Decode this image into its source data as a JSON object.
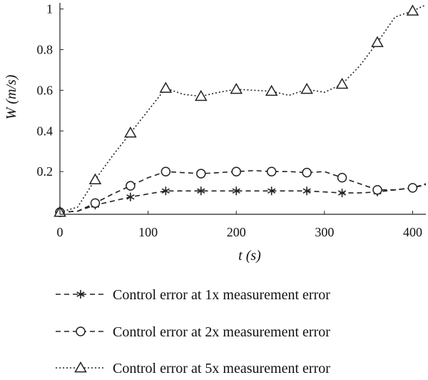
{
  "chart_data": {
    "type": "line",
    "xlabel": "t (s)",
    "ylabel": "W (m/s)",
    "xlim": [
      0,
      415
    ],
    "ylim": [
      -0.01,
      1.03
    ],
    "x_ticks": [
      "0",
      "100",
      "200",
      "300",
      "400"
    ],
    "x_tick_values": [
      0,
      100,
      200,
      300,
      400
    ],
    "y_ticks": [
      "0.2",
      "0.4",
      "0.6",
      "0.8",
      "1"
    ],
    "y_tick_values": [
      0.2,
      0.4,
      0.6,
      0.8,
      1.0
    ],
    "grid": false,
    "legend_position": "bottom",
    "series": [
      {
        "name": "Control error at 1x measurement error",
        "marker": "star",
        "dash": "dashed",
        "x": [
          0,
          20,
          40,
          60,
          80,
          100,
          120,
          140,
          160,
          180,
          200,
          220,
          240,
          260,
          280,
          300,
          320,
          340,
          360,
          380,
          400,
          415
        ],
        "y": [
          0.0,
          0.005,
          0.035,
          0.055,
          0.075,
          0.09,
          0.105,
          0.105,
          0.105,
          0.105,
          0.105,
          0.105,
          0.105,
          0.105,
          0.105,
          0.1,
          0.095,
          0.095,
          0.1,
          0.11,
          0.12,
          0.135
        ]
      },
      {
        "name": "Control error at 2x measurement error",
        "marker": "circle",
        "dash": "dashed",
        "x": [
          0,
          20,
          40,
          60,
          80,
          100,
          120,
          140,
          160,
          180,
          200,
          220,
          240,
          260,
          280,
          300,
          320,
          340,
          360,
          380,
          400,
          415
        ],
        "y": [
          0.0,
          0.005,
          0.045,
          0.09,
          0.13,
          0.17,
          0.2,
          0.195,
          0.19,
          0.195,
          0.2,
          0.205,
          0.2,
          0.2,
          0.195,
          0.2,
          0.17,
          0.14,
          0.11,
          0.11,
          0.12,
          0.14
        ]
      },
      {
        "name": "Control error at 5x measurement error",
        "marker": "triangle",
        "dash": "dotted",
        "x": [
          0,
          20,
          40,
          60,
          80,
          100,
          120,
          140,
          160,
          180,
          200,
          220,
          240,
          260,
          280,
          300,
          320,
          340,
          360,
          380,
          400,
          415
        ],
        "y": [
          0.0,
          0.025,
          0.16,
          0.28,
          0.39,
          0.5,
          0.61,
          0.58,
          0.57,
          0.59,
          0.605,
          0.6,
          0.595,
          0.575,
          0.605,
          0.59,
          0.63,
          0.72,
          0.835,
          0.96,
          0.99,
          1.02
        ]
      }
    ],
    "marker_indices": [
      [
        0,
        2,
        4,
        6,
        8,
        10,
        12,
        14,
        16,
        18,
        20
      ],
      [
        0,
        2,
        4,
        6,
        8,
        10,
        12,
        14,
        16,
        18,
        20
      ],
      [
        0,
        2,
        4,
        6,
        8,
        10,
        12,
        14,
        16,
        18,
        20
      ]
    ]
  }
}
